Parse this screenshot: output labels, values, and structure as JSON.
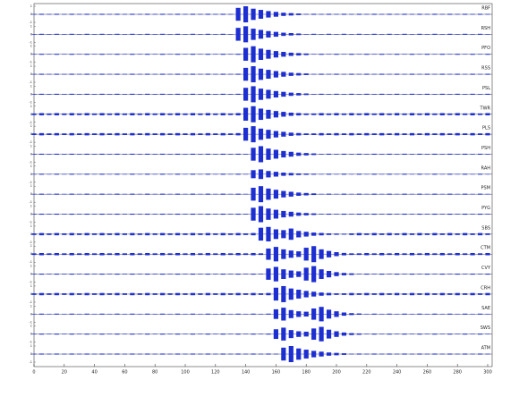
{
  "chart_data": {
    "type": "wiggle",
    "color": "#1e2fd2",
    "xlim": [
      0,
      300
    ],
    "xticks": [
      0,
      20,
      40,
      60,
      80,
      100,
      120,
      140,
      160,
      180,
      200,
      220,
      240,
      260,
      280,
      300
    ],
    "ylim": [
      -1,
      1
    ],
    "yticks": [
      -1,
      0,
      1
    ],
    "x": [
      0,
      5,
      10,
      15,
      20,
      25,
      30,
      35,
      40,
      45,
      50,
      55,
      60,
      65,
      70,
      75,
      80,
      85,
      90,
      95,
      100,
      105,
      110,
      115,
      120,
      125,
      130,
      135,
      140,
      145,
      150,
      155,
      160,
      165,
      170,
      175,
      180,
      185,
      190,
      195,
      200,
      205,
      210,
      215,
      220,
      225,
      230,
      235,
      240,
      245,
      250,
      255,
      260,
      265,
      270,
      275,
      280,
      285,
      290,
      295,
      300
    ],
    "series": [
      {
        "name": "RBF",
        "values": [
          0.04,
          0.06,
          0.04,
          0.06,
          0.04,
          0.06,
          0.04,
          0.06,
          0.04,
          0.06,
          0.04,
          0.06,
          0.04,
          0.06,
          0.04,
          0.06,
          0.04,
          0.06,
          0.04,
          0.06,
          0.04,
          0.06,
          0.04,
          0.06,
          0.04,
          0.06,
          0.04,
          0.8,
          1,
          0.7,
          0.55,
          0.4,
          0.3,
          0.2,
          0.15,
          0.1,
          0.04,
          0.06,
          0.04,
          0.06,
          0.04,
          0.06,
          0.04,
          0.06,
          0.04,
          0.06,
          0.04,
          0.06,
          0.04,
          0.06,
          0.04,
          0.06,
          0.04,
          0.06,
          0.04,
          0.06,
          0.04,
          0.06,
          0.04,
          0.06,
          0.04
        ]
      },
      {
        "name": "RSH",
        "values": [
          0.04,
          0.06,
          0.04,
          0.06,
          0.04,
          0.06,
          0.04,
          0.06,
          0.04,
          0.06,
          0.04,
          0.06,
          0.04,
          0.06,
          0.04,
          0.06,
          0.04,
          0.06,
          0.04,
          0.06,
          0.04,
          0.06,
          0.04,
          0.06,
          0.04,
          0.06,
          0.04,
          0.8,
          1,
          0.7,
          0.55,
          0.4,
          0.3,
          0.2,
          0.15,
          0.1,
          0.04,
          0.06,
          0.04,
          0.06,
          0.04,
          0.06,
          0.04,
          0.06,
          0.04,
          0.06,
          0.04,
          0.06,
          0.04,
          0.06,
          0.04,
          0.06,
          0.04,
          0.06,
          0.04,
          0.06,
          0.04,
          0.06,
          0.04,
          0.06,
          0.04
        ]
      },
      {
        "name": "PFO",
        "values": [
          0.04,
          0.06,
          0.04,
          0.06,
          0.04,
          0.06,
          0.04,
          0.06,
          0.04,
          0.06,
          0.04,
          0.06,
          0.04,
          0.06,
          0.04,
          0.06,
          0.04,
          0.06,
          0.04,
          0.06,
          0.04,
          0.06,
          0.04,
          0.06,
          0.04,
          0.06,
          0.04,
          0.06,
          0.8,
          1,
          0.7,
          0.55,
          0.4,
          0.3,
          0.2,
          0.15,
          0.1,
          0.04,
          0.06,
          0.04,
          0.06,
          0.04,
          0.06,
          0.04,
          0.06,
          0.04,
          0.06,
          0.04,
          0.06,
          0.04,
          0.06,
          0.04,
          0.06,
          0.04,
          0.06,
          0.04,
          0.06,
          0.04,
          0.06,
          0.04,
          0.06
        ]
      },
      {
        "name": "RSS",
        "values": [
          0.04,
          0.06,
          0.04,
          0.06,
          0.04,
          0.06,
          0.04,
          0.06,
          0.04,
          0.06,
          0.04,
          0.06,
          0.04,
          0.06,
          0.04,
          0.06,
          0.04,
          0.06,
          0.04,
          0.06,
          0.04,
          0.06,
          0.04,
          0.06,
          0.04,
          0.06,
          0.04,
          0.06,
          0.8,
          1,
          0.7,
          0.55,
          0.4,
          0.3,
          0.2,
          0.15,
          0.1,
          0.04,
          0.06,
          0.04,
          0.06,
          0.04,
          0.06,
          0.04,
          0.06,
          0.04,
          0.06,
          0.04,
          0.06,
          0.04,
          0.06,
          0.04,
          0.06,
          0.04,
          0.06,
          0.04,
          0.06,
          0.04,
          0.06,
          0.04,
          0.06
        ]
      },
      {
        "name": "PSL",
        "values": [
          0.04,
          0.06,
          0.04,
          0.06,
          0.04,
          0.06,
          0.04,
          0.06,
          0.04,
          0.06,
          0.04,
          0.06,
          0.04,
          0.06,
          0.04,
          0.06,
          0.04,
          0.06,
          0.04,
          0.06,
          0.04,
          0.06,
          0.04,
          0.06,
          0.04,
          0.06,
          0.04,
          0.06,
          0.8,
          1,
          0.7,
          0.55,
          0.4,
          0.3,
          0.2,
          0.15,
          0.1,
          0.04,
          0.06,
          0.04,
          0.06,
          0.04,
          0.06,
          0.04,
          0.06,
          0.04,
          0.06,
          0.04,
          0.06,
          0.04,
          0.06,
          0.04,
          0.06,
          0.04,
          0.06,
          0.04,
          0.06,
          0.04,
          0.06,
          0.04,
          0.06
        ]
      },
      {
        "name": "TWR",
        "values": [
          0.1,
          0.14,
          0.1,
          0.14,
          0.1,
          0.14,
          0.1,
          0.14,
          0.1,
          0.14,
          0.1,
          0.14,
          0.1,
          0.14,
          0.1,
          0.14,
          0.1,
          0.14,
          0.1,
          0.14,
          0.1,
          0.14,
          0.1,
          0.14,
          0.1,
          0.14,
          0.1,
          0.14,
          0.8,
          1,
          0.7,
          0.55,
          0.4,
          0.3,
          0.2,
          0.15,
          0.1,
          0.1,
          0.14,
          0.1,
          0.14,
          0.1,
          0.14,
          0.1,
          0.14,
          0.1,
          0.14,
          0.1,
          0.14,
          0.1,
          0.14,
          0.1,
          0.14,
          0.1,
          0.14,
          0.1,
          0.14,
          0.1,
          0.14,
          0.1,
          0.14
        ]
      },
      {
        "name": "PLS",
        "values": [
          0.1,
          0.14,
          0.1,
          0.14,
          0.1,
          0.14,
          0.1,
          0.14,
          0.1,
          0.14,
          0.1,
          0.14,
          0.1,
          0.14,
          0.1,
          0.14,
          0.1,
          0.14,
          0.1,
          0.14,
          0.1,
          0.14,
          0.1,
          0.14,
          0.1,
          0.14,
          0.1,
          0.14,
          0.8,
          1,
          0.7,
          0.55,
          0.4,
          0.3,
          0.2,
          0.15,
          0.1,
          0.1,
          0.14,
          0.1,
          0.14,
          0.1,
          0.14,
          0.1,
          0.14,
          0.1,
          0.14,
          0.1,
          0.14,
          0.1,
          0.14,
          0.1,
          0.14,
          0.1,
          0.14,
          0.1,
          0.14,
          0.1,
          0.14,
          0.1,
          0.14
        ]
      },
      {
        "name": "PSH",
        "values": [
          0.04,
          0.06,
          0.04,
          0.06,
          0.04,
          0.06,
          0.04,
          0.06,
          0.04,
          0.06,
          0.04,
          0.06,
          0.04,
          0.06,
          0.04,
          0.06,
          0.04,
          0.06,
          0.04,
          0.06,
          0.04,
          0.06,
          0.04,
          0.06,
          0.04,
          0.06,
          0.04,
          0.06,
          0.04,
          0.8,
          1,
          0.7,
          0.55,
          0.4,
          0.3,
          0.2,
          0.15,
          0.1,
          0.04,
          0.06,
          0.04,
          0.06,
          0.04,
          0.06,
          0.04,
          0.06,
          0.04,
          0.06,
          0.04,
          0.06,
          0.04,
          0.06,
          0.04,
          0.06,
          0.04,
          0.06,
          0.04,
          0.06,
          0.04,
          0.06,
          0.04
        ]
      },
      {
        "name": "RAH",
        "values": [
          0.04,
          0.06,
          0.04,
          0.06,
          0.04,
          0.06,
          0.04,
          0.06,
          0.04,
          0.06,
          0.04,
          0.06,
          0.04,
          0.06,
          0.04,
          0.06,
          0.04,
          0.06,
          0.04,
          0.06,
          0.04,
          0.06,
          0.04,
          0.06,
          0.04,
          0.06,
          0.04,
          0.06,
          0.04,
          0.5,
          0.6,
          0.4,
          0.3,
          0.2,
          0.15,
          0.1,
          0.08,
          0.06,
          0.04,
          0.06,
          0.04,
          0.06,
          0.04,
          0.06,
          0.04,
          0.06,
          0.04,
          0.06,
          0.04,
          0.06,
          0.04,
          0.06,
          0.04,
          0.06,
          0.04,
          0.06,
          0.04,
          0.06,
          0.04,
          0.06,
          0.04
        ]
      },
      {
        "name": "PSM",
        "values": [
          0.04,
          0.06,
          0.04,
          0.06,
          0.04,
          0.06,
          0.04,
          0.06,
          0.04,
          0.06,
          0.04,
          0.06,
          0.04,
          0.06,
          0.04,
          0.06,
          0.04,
          0.06,
          0.04,
          0.06,
          0.04,
          0.06,
          0.04,
          0.06,
          0.04,
          0.06,
          0.04,
          0.06,
          0.04,
          0.8,
          1,
          0.7,
          0.55,
          0.4,
          0.3,
          0.2,
          0.15,
          0.1,
          0.04,
          0.06,
          0.04,
          0.06,
          0.04,
          0.06,
          0.04,
          0.06,
          0.04,
          0.06,
          0.04,
          0.06,
          0.04,
          0.06,
          0.04,
          0.06,
          0.04,
          0.06,
          0.04,
          0.06,
          0.04,
          0.06,
          0.04
        ]
      },
      {
        "name": "PYG",
        "values": [
          0.04,
          0.06,
          0.04,
          0.06,
          0.04,
          0.06,
          0.04,
          0.06,
          0.04,
          0.06,
          0.04,
          0.06,
          0.04,
          0.06,
          0.04,
          0.06,
          0.04,
          0.06,
          0.04,
          0.06,
          0.04,
          0.06,
          0.04,
          0.06,
          0.04,
          0.06,
          0.04,
          0.06,
          0.04,
          0.8,
          1,
          0.7,
          0.55,
          0.4,
          0.3,
          0.2,
          0.15,
          0.1,
          0.04,
          0.06,
          0.04,
          0.06,
          0.04,
          0.06,
          0.04,
          0.06,
          0.04,
          0.06,
          0.04,
          0.06,
          0.04,
          0.06,
          0.04,
          0.06,
          0.04,
          0.06,
          0.04,
          0.06,
          0.04,
          0.06,
          0.04
        ]
      },
      {
        "name": "SBS",
        "values": [
          0.1,
          0.14,
          0.1,
          0.14,
          0.1,
          0.14,
          0.1,
          0.14,
          0.1,
          0.14,
          0.1,
          0.14,
          0.1,
          0.14,
          0.1,
          0.14,
          0.1,
          0.14,
          0.1,
          0.14,
          0.1,
          0.14,
          0.1,
          0.14,
          0.1,
          0.14,
          0.1,
          0.14,
          0.1,
          0.14,
          0.8,
          0.9,
          0.6,
          0.5,
          0.7,
          0.4,
          0.3,
          0.2,
          0.15,
          0.1,
          0.08,
          0.06,
          0.1,
          0.14,
          0.1,
          0.14,
          0.1,
          0.14,
          0.1,
          0.14,
          0.1,
          0.14,
          0.1,
          0.14,
          0.1,
          0.14,
          0.1,
          0.14,
          0.1,
          0.14,
          0.1
        ]
      },
      {
        "name": "CTM",
        "values": [
          0.1,
          0.14,
          0.1,
          0.14,
          0.1,
          0.14,
          0.1,
          0.14,
          0.1,
          0.14,
          0.1,
          0.14,
          0.1,
          0.14,
          0.1,
          0.14,
          0.1,
          0.14,
          0.1,
          0.14,
          0.1,
          0.14,
          0.1,
          0.14,
          0.1,
          0.14,
          0.1,
          0.14,
          0.1,
          0.14,
          0.1,
          0.7,
          0.9,
          0.6,
          0.45,
          0.35,
          0.8,
          1,
          0.6,
          0.4,
          0.25,
          0.15,
          0.1,
          0.1,
          0.14,
          0.1,
          0.14,
          0.1,
          0.14,
          0.1,
          0.14,
          0.1,
          0.14,
          0.1,
          0.14,
          0.1,
          0.14,
          0.1,
          0.14,
          0.1,
          0.14
        ]
      },
      {
        "name": "CVY",
        "values": [
          0.04,
          0.06,
          0.04,
          0.06,
          0.04,
          0.06,
          0.04,
          0.06,
          0.04,
          0.06,
          0.04,
          0.06,
          0.04,
          0.06,
          0.04,
          0.06,
          0.04,
          0.06,
          0.04,
          0.06,
          0.04,
          0.06,
          0.04,
          0.06,
          0.04,
          0.06,
          0.04,
          0.06,
          0.04,
          0.06,
          0.04,
          0.7,
          0.9,
          0.6,
          0.45,
          0.35,
          0.8,
          1,
          0.6,
          0.4,
          0.25,
          0.15,
          0.1,
          0.04,
          0.06,
          0.04,
          0.06,
          0.04,
          0.06,
          0.04,
          0.06,
          0.04,
          0.06,
          0.04,
          0.06,
          0.04,
          0.06,
          0.04,
          0.06,
          0.04,
          0.06
        ]
      },
      {
        "name": "CRH",
        "values": [
          0.1,
          0.14,
          0.1,
          0.14,
          0.1,
          0.14,
          0.1,
          0.14,
          0.1,
          0.14,
          0.1,
          0.14,
          0.1,
          0.14,
          0.1,
          0.14,
          0.1,
          0.14,
          0.1,
          0.14,
          0.1,
          0.14,
          0.1,
          0.14,
          0.1,
          0.14,
          0.1,
          0.14,
          0.1,
          0.14,
          0.1,
          0.14,
          0.8,
          1,
          0.7,
          0.55,
          0.4,
          0.3,
          0.2,
          0.15,
          0.1,
          0.1,
          0.14,
          0.1,
          0.14,
          0.1,
          0.14,
          0.1,
          0.14,
          0.1,
          0.14,
          0.1,
          0.14,
          0.1,
          0.14,
          0.1,
          0.14,
          0.1,
          0.14,
          0.1,
          0.14
        ]
      },
      {
        "name": "SAE",
        "values": [
          0.04,
          0.06,
          0.04,
          0.06,
          0.04,
          0.06,
          0.04,
          0.06,
          0.04,
          0.06,
          0.04,
          0.06,
          0.04,
          0.06,
          0.04,
          0.06,
          0.04,
          0.06,
          0.04,
          0.06,
          0.04,
          0.06,
          0.04,
          0.06,
          0.04,
          0.06,
          0.04,
          0.06,
          0.04,
          0.06,
          0.04,
          0.06,
          0.6,
          0.8,
          0.5,
          0.35,
          0.3,
          0.7,
          0.9,
          0.55,
          0.35,
          0.2,
          0.12,
          0.08,
          0.04,
          0.06,
          0.04,
          0.06,
          0.04,
          0.06,
          0.04,
          0.06,
          0.04,
          0.06,
          0.04,
          0.06,
          0.04,
          0.06,
          0.04,
          0.06,
          0.04
        ]
      },
      {
        "name": "SWS",
        "values": [
          0.04,
          0.06,
          0.04,
          0.06,
          0.04,
          0.06,
          0.04,
          0.06,
          0.04,
          0.06,
          0.04,
          0.06,
          0.04,
          0.06,
          0.04,
          0.06,
          0.04,
          0.06,
          0.04,
          0.06,
          0.04,
          0.06,
          0.04,
          0.06,
          0.04,
          0.06,
          0.04,
          0.06,
          0.04,
          0.06,
          0.04,
          0.06,
          0.6,
          0.8,
          0.5,
          0.35,
          0.3,
          0.7,
          0.9,
          0.55,
          0.35,
          0.2,
          0.12,
          0.08,
          0.04,
          0.06,
          0.04,
          0.06,
          0.04,
          0.06,
          0.04,
          0.06,
          0.04,
          0.06,
          0.04,
          0.06,
          0.04,
          0.06,
          0.04,
          0.06,
          0.04
        ]
      },
      {
        "name": "ATM",
        "values": [
          0.04,
          0.06,
          0.04,
          0.06,
          0.04,
          0.06,
          0.04,
          0.06,
          0.04,
          0.06,
          0.04,
          0.06,
          0.04,
          0.06,
          0.04,
          0.06,
          0.04,
          0.06,
          0.04,
          0.06,
          0.04,
          0.06,
          0.04,
          0.06,
          0.04,
          0.06,
          0.04,
          0.06,
          0.04,
          0.06,
          0.04,
          0.06,
          0.04,
          0.8,
          1,
          0.7,
          0.55,
          0.4,
          0.3,
          0.2,
          0.15,
          0.1,
          0.04,
          0.06,
          0.04,
          0.06,
          0.04,
          0.06,
          0.04,
          0.06,
          0.04,
          0.06,
          0.04,
          0.06,
          0.04,
          0.06,
          0.04,
          0.06,
          0.04,
          0.06,
          0.04
        ]
      }
    ]
  }
}
